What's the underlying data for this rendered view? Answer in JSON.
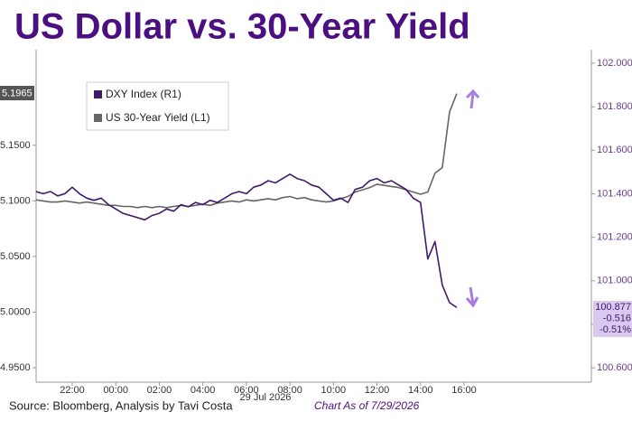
{
  "chart_data": {
    "type": "line",
    "title": "US Dollar vs. 30-Year Yield",
    "source": "Source: Bloomberg, Analysis by Tavi Costa",
    "as_of": "Chart As of 7/29/2026",
    "date_label": "29 Jul 2026",
    "yield_last_label": "5.1965",
    "dxy_last_labels": [
      "100.877",
      "-0.516",
      "-0.51%"
    ],
    "categories": [
      null,
      null,
      null,
      null,
      null,
      "22:00",
      null,
      null,
      null,
      null,
      null,
      "00:00",
      null,
      null,
      null,
      null,
      null,
      "02:00",
      null,
      null,
      null,
      null,
      null,
      "04:00",
      null,
      null,
      null,
      null,
      null,
      "06:00",
      null,
      null,
      null,
      null,
      null,
      "08:00",
      null,
      null,
      null,
      null,
      null,
      "10:00",
      null,
      null,
      null,
      null,
      null,
      "12:00",
      null,
      null,
      null,
      null,
      null,
      "14:00",
      null,
      null,
      null,
      null,
      null,
      "16:00",
      null,
      null,
      null,
      null,
      null,
      null,
      null,
      null,
      null,
      null,
      null,
      null,
      null,
      null,
      null,
      null,
      null
    ],
    "series": [
      {
        "name": "DXY Index (R1)",
        "color": "#3f1a6b",
        "axis": "y2",
        "values": [
          101.41,
          101.4,
          101.41,
          101.39,
          101.4,
          101.43,
          101.4,
          101.38,
          101.37,
          101.38,
          101.35,
          101.33,
          101.31,
          101.3,
          101.29,
          101.28,
          101.3,
          101.31,
          101.33,
          101.32,
          101.35,
          101.34,
          101.36,
          101.35,
          101.37,
          101.36,
          101.38,
          101.4,
          101.41,
          101.4,
          101.43,
          101.44,
          101.46,
          101.45,
          101.47,
          101.49,
          101.47,
          101.46,
          101.44,
          101.43,
          101.4,
          101.37,
          101.38,
          101.36,
          101.42,
          101.43,
          101.46,
          101.47,
          101.45,
          101.46,
          101.44,
          101.42,
          101.38,
          101.36,
          101.1,
          101.18,
          100.98,
          100.9,
          100.877,
          null,
          null,
          null,
          null,
          null,
          null,
          null,
          null,
          null,
          null,
          null,
          null,
          null,
          null,
          null,
          null,
          null,
          null
        ]
      },
      {
        "name": "US 30-Year Yield (L1)",
        "color": "#666666",
        "axis": "y",
        "values": [
          5.101,
          5.1,
          5.099,
          5.099,
          5.1,
          5.099,
          5.098,
          5.099,
          5.098,
          5.097,
          5.096,
          5.096,
          5.095,
          5.095,
          5.094,
          5.095,
          5.094,
          5.095,
          5.094,
          5.095,
          5.096,
          5.095,
          5.096,
          5.097,
          5.096,
          5.098,
          5.099,
          5.1,
          5.099,
          5.101,
          5.1,
          5.101,
          5.102,
          5.101,
          5.103,
          5.104,
          5.102,
          5.103,
          5.101,
          5.1,
          5.099,
          5.1,
          5.102,
          5.104,
          5.108,
          5.11,
          5.112,
          5.115,
          5.114,
          5.113,
          5.112,
          5.11,
          5.108,
          5.106,
          5.108,
          5.125,
          5.13,
          5.18,
          5.1965,
          null,
          null,
          null,
          null,
          null,
          null,
          null,
          null,
          null,
          null,
          null,
          null,
          null,
          null,
          null,
          null,
          null,
          null
        ]
      }
    ],
    "ylim": [
      4.937,
      5.236
    ],
    "yticks": [
      {
        "value": 4.95,
        "label": "4.9500"
      },
      {
        "value": 5.0,
        "label": "5.0000"
      },
      {
        "value": 5.05,
        "label": "5.0500"
      },
      {
        "value": 5.1,
        "label": "5.1000"
      },
      {
        "value": 5.15,
        "label": "5.1500"
      }
    ],
    "y2lim": [
      100.534,
      102.062
    ],
    "y2ticks": [
      {
        "value": 100.6,
        "label": "100.600"
      },
      {
        "value": 100.8,
        "label": "100.800"
      },
      {
        "value": 101.0,
        "label": "101.000"
      },
      {
        "value": 101.2,
        "label": "101.200"
      },
      {
        "value": 101.4,
        "label": "101.400"
      },
      {
        "value": 101.6,
        "label": "101.600"
      },
      {
        "value": 101.8,
        "label": "101.800"
      },
      {
        "value": 102.0,
        "label": "102.000"
      }
    ],
    "grid": false,
    "legend": "upper-left"
  }
}
